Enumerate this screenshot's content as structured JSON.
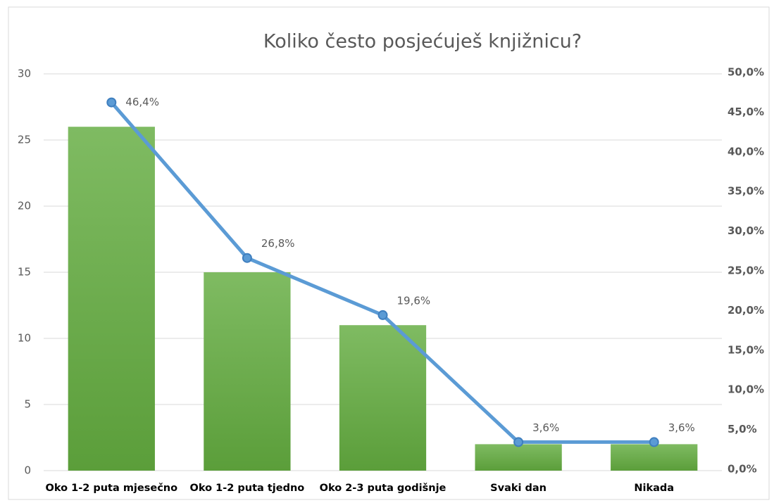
{
  "chart_data": {
    "type": "bar",
    "title": "Koliko često posjećuješ knjižnicu?",
    "categories": [
      "Oko 1-2 puta mjesečno",
      "Oko 1-2 puta tjedno",
      "Oko 2-3 puta godišnje",
      "Svaki dan",
      "Nikada"
    ],
    "series": [
      {
        "color": "#6aab4a",
        "values": [
          26,
          15,
          11,
          2,
          2
        ]
      },
      {
        "type": "line",
        "axis": "y2",
        "color": "#5b9bd5",
        "values": [
          46.4,
          26.8,
          19.6,
          3.6,
          3.6
        ],
        "value_labels": [
          "46,4%",
          "26,8%",
          "19,6%",
          "3,6%",
          "3,6%"
        ]
      }
    ],
    "ylim": [
      0,
      30
    ],
    "yticks": [
      0,
      5,
      10,
      15,
      20,
      25,
      30
    ],
    "y2lim": [
      0,
      50
    ],
    "y2ticks": [
      {
        "value": 0,
        "label": "0,0%"
      },
      {
        "value": 5,
        "label": "5,0%"
      },
      {
        "value": 10,
        "label": "10,0%"
      },
      {
        "value": 15,
        "label": "15,0%"
      },
      {
        "value": 20,
        "label": "20,0%"
      },
      {
        "value": 25,
        "label": "25,0%"
      },
      {
        "value": 30,
        "label": "30,0%"
      },
      {
        "value": 35,
        "label": "35,0%"
      },
      {
        "value": 40,
        "label": "40,0%"
      },
      {
        "value": 45,
        "label": "45,0%"
      },
      {
        "value": 50,
        "label": "50,0%"
      }
    ],
    "grid": true
  }
}
